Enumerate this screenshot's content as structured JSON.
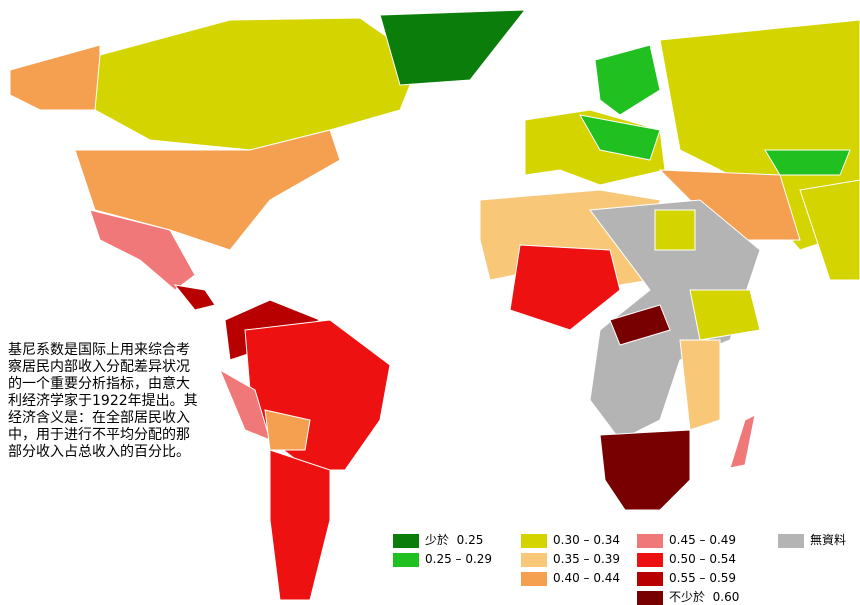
{
  "description": [
    "基尼系数是国际上用来综合考",
    "察居民内部收入分配差异状况",
    "的一个重要分析指标，由意大",
    "利经济学家于1922年提出。其",
    "经济含义是：在全部居民收入",
    "中，用于进行不平均分配的那",
    "部分收入占总收入的百分比。"
  ],
  "legend": [
    {
      "label": "少於  0.25",
      "color": "#0b7d0b"
    },
    {
      "label": "0.25 – 0.29",
      "color": "#20c020"
    },
    {
      "label": "0.30 – 0.34",
      "color": "#d4d400"
    },
    {
      "label": "0.35 – 0.39",
      "color": "#f8c878"
    },
    {
      "label": "0.40 – 0.44",
      "color": "#f4a050"
    },
    {
      "label": "0.45 – 0.49",
      "color": "#f07878"
    },
    {
      "label": "0.50 – 0.54",
      "color": "#ee1111"
    },
    {
      "label": "0.55 – 0.59",
      "color": "#b80000"
    },
    {
      "label": "不少於  0.60",
      "color": "#780000"
    },
    {
      "label": "無資料",
      "color": "#b4b4b4"
    }
  ]
}
